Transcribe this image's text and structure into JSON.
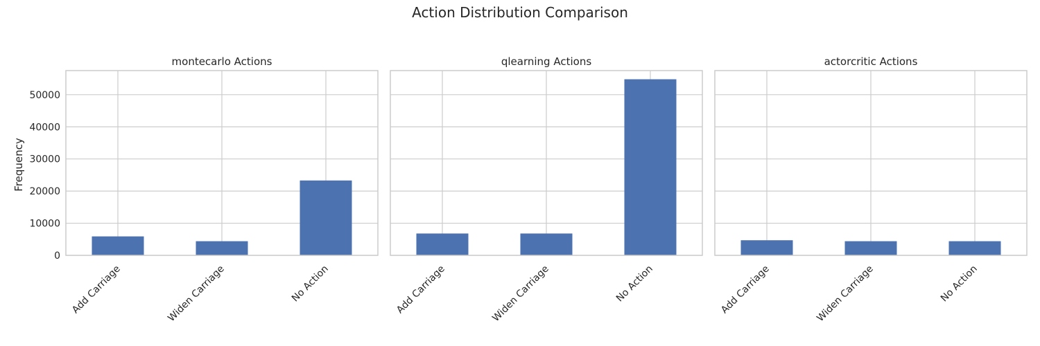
{
  "figure": {
    "title": "Action Distribution Comparison",
    "ylabel": "Frequency"
  },
  "colors": {
    "bar": "#4c72b0",
    "grid": "#cccccc",
    "text": "#262626",
    "background": "#ffffff"
  },
  "chart_data": [
    {
      "type": "bar",
      "title": "montecarlo Actions",
      "categories": [
        "Add Carriage",
        "Widen Carriage",
        "No Action"
      ],
      "values": [
        5900,
        4400,
        23300
      ],
      "ylabel": "Frequency",
      "ylim": [
        0,
        57500
      ],
      "yticks": [
        0,
        10000,
        20000,
        30000,
        40000,
        50000
      ],
      "grid": true
    },
    {
      "type": "bar",
      "title": "qlearning Actions",
      "categories": [
        "Add Carriage",
        "Widen Carriage",
        "No Action"
      ],
      "values": [
        6800,
        6800,
        54800
      ],
      "ylabel": "",
      "ylim": [
        0,
        57500
      ],
      "yticks": [
        0,
        10000,
        20000,
        30000,
        40000,
        50000
      ],
      "grid": true
    },
    {
      "type": "bar",
      "title": "actorcritic Actions",
      "categories": [
        "Add Carriage",
        "Widen Carriage",
        "No Action"
      ],
      "values": [
        4700,
        4400,
        4400
      ],
      "ylabel": "",
      "ylim": [
        0,
        57500
      ],
      "yticks": [
        0,
        10000,
        20000,
        30000,
        40000,
        50000
      ],
      "grid": true
    }
  ]
}
